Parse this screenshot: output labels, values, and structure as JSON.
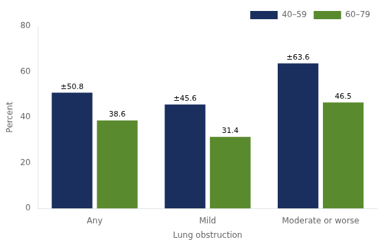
{
  "chart_data": {
    "type": "bar",
    "categories": [
      "Any",
      "Mild",
      "Moderate or worse"
    ],
    "series": [
      {
        "name": "40–59",
        "color": "#1a2f5e",
        "values": [
          50.8,
          45.6,
          63.6
        ],
        "value_labels": [
          "±50.8",
          "±45.6",
          "±63.6"
        ]
      },
      {
        "name": "60–79",
        "color": "#5a8a2e",
        "values": [
          38.6,
          31.4,
          46.5
        ]
      }
    ],
    "xlabel": "Lung obstruction",
    "ylabel": "Percent",
    "ylim": [
      0,
      80
    ],
    "yticks": [
      0,
      20,
      40,
      60,
      80
    ],
    "grid": false,
    "legend": "upper right",
    "data_labels": true
  }
}
